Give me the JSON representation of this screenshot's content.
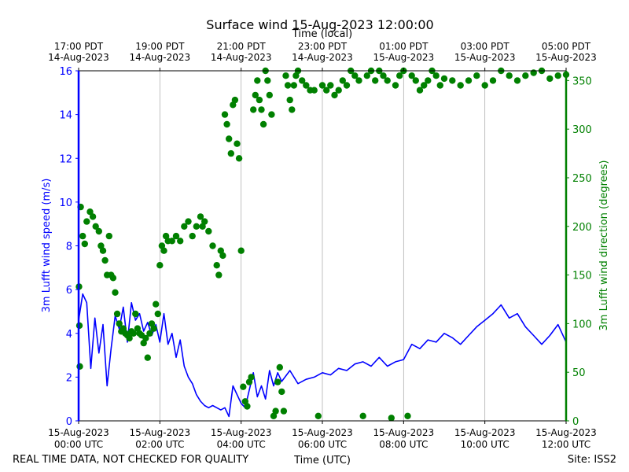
{
  "chart_data": {
    "type": "line",
    "title": "Surface wind 15-Aug-2023 12:00:00",
    "top_axis_label": "Time (local)",
    "xlabel": "Time (UTC)",
    "ylabel_left": "3m Lufft wind speed (m/s)",
    "ylabel_right": "3m Lufft wind direction (degrees)",
    "xlim_hours_utc": [
      0,
      12
    ],
    "ylim_left": [
      0,
      16
    ],
    "ylim_right": [
      0,
      360
    ],
    "grid": "vertical",
    "left_ticks": [
      "0",
      "2",
      "4",
      "6",
      "8",
      "10",
      "12",
      "14",
      "16"
    ],
    "right_ticks": [
      "0",
      "50",
      "100",
      "150",
      "200",
      "250",
      "300",
      "350"
    ],
    "x_ticks_bottom": [
      {
        "hour": 0,
        "line1": "15-Aug-2023",
        "line2": "00:00 UTC"
      },
      {
        "hour": 2,
        "line1": "15-Aug-2023",
        "line2": "02:00 UTC"
      },
      {
        "hour": 4,
        "line1": "15-Aug-2023",
        "line2": "04:00 UTC"
      },
      {
        "hour": 6,
        "line1": "15-Aug-2023",
        "line2": "06:00 UTC"
      },
      {
        "hour": 8,
        "line1": "15-Aug-2023",
        "line2": "08:00 UTC"
      },
      {
        "hour": 10,
        "line1": "15-Aug-2023",
        "line2": "10:00 UTC"
      },
      {
        "hour": 12,
        "line1": "15-Aug-2023",
        "line2": "12:00 UTC"
      }
    ],
    "x_ticks_top": [
      {
        "hour": 0,
        "line1": "17:00 PDT",
        "line2": "14-Aug-2023"
      },
      {
        "hour": 2,
        "line1": "19:00 PDT",
        "line2": "14-Aug-2023"
      },
      {
        "hour": 4,
        "line1": "21:00 PDT",
        "line2": "14-Aug-2023"
      },
      {
        "hour": 6,
        "line1": "23:00 PDT",
        "line2": "14-Aug-2023"
      },
      {
        "hour": 8,
        "line1": "01:00 PDT",
        "line2": "15-Aug-2023"
      },
      {
        "hour": 10,
        "line1": "03:00 PDT",
        "line2": "15-Aug-2023"
      },
      {
        "hour": 12,
        "line1": "05:00 PDT",
        "line2": "15-Aug-2023"
      }
    ],
    "series": [
      {
        "name": "3m Lufft wind speed (m/s)",
        "axis": "left",
        "style": "line",
        "color": "#0000ff",
        "x_hours": [
          0,
          0.1,
          0.2,
          0.3,
          0.4,
          0.5,
          0.6,
          0.7,
          0.8,
          0.9,
          1.0,
          1.1,
          1.2,
          1.3,
          1.4,
          1.5,
          1.6,
          1.7,
          1.8,
          1.9,
          2.0,
          2.1,
          2.2,
          2.3,
          2.4,
          2.5,
          2.6,
          2.7,
          2.8,
          2.9,
          3.0,
          3.1,
          3.2,
          3.3,
          3.4,
          3.5,
          3.6,
          3.7,
          3.8,
          3.9,
          4.0,
          4.1,
          4.2,
          4.3,
          4.4,
          4.5,
          4.6,
          4.7,
          4.8,
          4.9,
          5.0,
          5.2,
          5.4,
          5.6,
          5.8,
          6.0,
          6.2,
          6.4,
          6.6,
          6.8,
          7.0,
          7.2,
          7.4,
          7.6,
          7.8,
          8.0,
          8.2,
          8.4,
          8.6,
          8.8,
          9.0,
          9.2,
          9.4,
          9.6,
          9.8,
          10.0,
          10.2,
          10.4,
          10.6,
          10.8,
          11.0,
          11.2,
          11.4,
          11.6,
          11.8,
          12.0
        ],
        "values": [
          4.6,
          5.8,
          5.4,
          2.4,
          4.7,
          3.1,
          4.4,
          1.6,
          3.3,
          4.8,
          4.2,
          5.2,
          3.6,
          5.4,
          4.6,
          4.9,
          4.1,
          4.5,
          3.9,
          4.4,
          3.6,
          4.9,
          3.5,
          4.0,
          2.9,
          3.7,
          2.5,
          2.0,
          1.7,
          1.2,
          0.9,
          0.7,
          0.6,
          0.7,
          0.6,
          0.5,
          0.6,
          0.2,
          1.6,
          1.2,
          0.8,
          0.6,
          1.4,
          2.2,
          1.1,
          1.6,
          1.0,
          2.3,
          1.6,
          2.2,
          1.8,
          2.3,
          1.7,
          1.9,
          2.0,
          2.2,
          2.1,
          2.4,
          2.3,
          2.6,
          2.7,
          2.5,
          2.9,
          2.5,
          2.7,
          2.8,
          3.5,
          3.3,
          3.7,
          3.6,
          4.0,
          3.8,
          3.5,
          3.9,
          4.3,
          4.6,
          4.9,
          5.3,
          4.7,
          4.9,
          4.3,
          3.9,
          3.5,
          3.9,
          4.4,
          3.6
        ]
      },
      {
        "name": "3m Lufft wind direction (degrees)",
        "axis": "right",
        "style": "scatter",
        "color": "#008000",
        "x_hours": [
          0.01,
          0.02,
          0.03,
          0.05,
          0.1,
          0.15,
          0.2,
          0.28,
          0.35,
          0.42,
          0.5,
          0.55,
          0.6,
          0.65,
          0.7,
          0.75,
          0.8,
          0.85,
          0.9,
          0.95,
          1.0,
          1.05,
          1.1,
          1.15,
          1.2,
          1.25,
          1.3,
          1.35,
          1.4,
          1.45,
          1.5,
          1.55,
          1.6,
          1.65,
          1.7,
          1.75,
          1.8,
          1.85,
          1.9,
          1.95,
          2.0,
          2.05,
          2.1,
          2.15,
          2.2,
          2.3,
          2.4,
          2.5,
          2.6,
          2.7,
          2.8,
          2.9,
          3.0,
          3.05,
          3.1,
          3.2,
          3.3,
          3.4,
          3.45,
          3.5,
          3.55,
          3.6,
          3.65,
          3.7,
          3.75,
          3.8,
          3.85,
          3.9,
          3.95,
          4.0,
          4.05,
          4.1,
          4.15,
          4.2,
          4.25,
          4.3,
          4.35,
          4.4,
          4.45,
          4.5,
          4.55,
          4.6,
          4.65,
          4.7,
          4.75,
          4.8,
          4.85,
          4.9,
          4.95,
          5.0,
          5.05,
          5.1,
          5.15,
          5.2,
          5.25,
          5.3,
          5.35,
          5.4,
          5.5,
          5.6,
          5.7,
          5.8,
          5.9,
          6.0,
          6.1,
          6.2,
          6.3,
          6.4,
          6.5,
          6.6,
          6.7,
          6.8,
          6.9,
          7.0,
          7.1,
          7.2,
          7.3,
          7.4,
          7.5,
          7.6,
          7.7,
          7.8,
          7.9,
          8.0,
          8.1,
          8.2,
          8.3,
          8.4,
          8.5,
          8.6,
          8.7,
          8.8,
          8.9,
          9.0,
          9.2,
          9.4,
          9.6,
          9.8,
          10.0,
          10.2,
          10.4,
          10.6,
          10.8,
          11.0,
          11.2,
          11.4,
          11.6,
          11.8,
          12.0
        ],
        "values": [
          138,
          98,
          56,
          220,
          190,
          182,
          205,
          215,
          210,
          200,
          195,
          180,
          175,
          165,
          150,
          190,
          150,
          147,
          132,
          110,
          100,
          92,
          95,
          90,
          88,
          85,
          92,
          90,
          110,
          95,
          90,
          88,
          80,
          85,
          65,
          90,
          100,
          95,
          120,
          110,
          160,
          180,
          175,
          190,
          185,
          185,
          190,
          185,
          200,
          205,
          190,
          200,
          210,
          200,
          205,
          195,
          180,
          160,
          150,
          175,
          170,
          315,
          305,
          290,
          275,
          325,
          330,
          285,
          270,
          175,
          35,
          20,
          15,
          40,
          45,
          320,
          335,
          350,
          330,
          320,
          305,
          360,
          350,
          335,
          315,
          5,
          10,
          40,
          55,
          30,
          10,
          355,
          345,
          330,
          320,
          345,
          355,
          360,
          350,
          345,
          340,
          340,
          5,
          345,
          340,
          345,
          335,
          340,
          350,
          345,
          360,
          355,
          350,
          5,
          355,
          360,
          350,
          360,
          355,
          350,
          3,
          345,
          355,
          360,
          5,
          355,
          350,
          340,
          345,
          350,
          360,
          355,
          345,
          352,
          350,
          345,
          350,
          355,
          345,
          350,
          360,
          355,
          350,
          355,
          358,
          360,
          352,
          355,
          356
        ]
      }
    ]
  },
  "footer": {
    "left_note": "REAL TIME DATA, NOT CHECKED FOR QUALITY",
    "site": "Site: ISS2"
  }
}
